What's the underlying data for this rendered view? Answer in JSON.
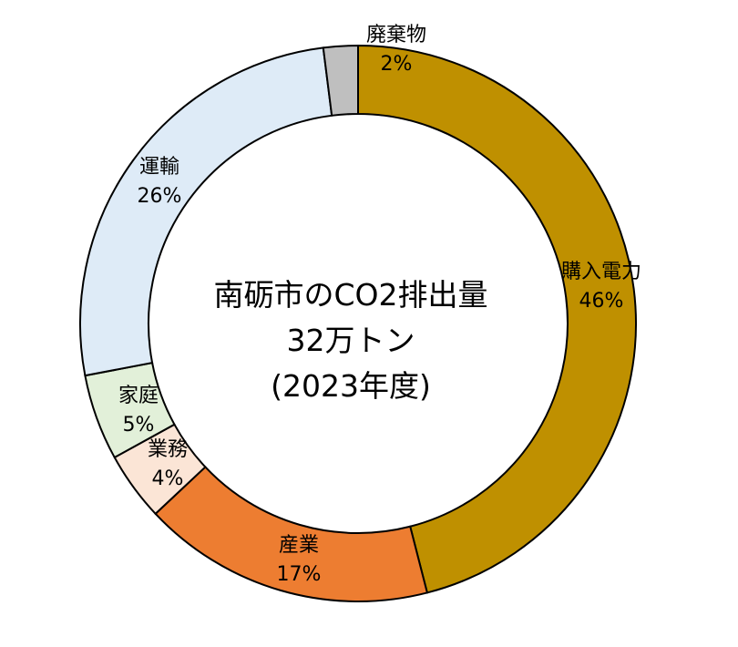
{
  "chart_data": {
    "type": "pie",
    "style": "donut",
    "center_label": {
      "line1": "南砺市のCO2排出量",
      "line2": "32万トン",
      "line3": "(2023年度)"
    },
    "slices": [
      {
        "name": "購入電力",
        "value": 46,
        "value_label": "46%",
        "color": "#BF9000"
      },
      {
        "name": "産業",
        "value": 17,
        "value_label": "17%",
        "color": "#ED7D31"
      },
      {
        "name": "業務",
        "value": 4,
        "value_label": "4%",
        "color": "#FBE5D6"
      },
      {
        "name": "家庭",
        "value": 5,
        "value_label": "5%",
        "color": "#E2F0D9"
      },
      {
        "name": "運輸",
        "value": 26,
        "value_label": "26%",
        "color": "#DEEBF7"
      },
      {
        "name": "廃棄物",
        "value": 2,
        "value_label": "2%",
        "color": "#BFBFBF"
      }
    ]
  }
}
